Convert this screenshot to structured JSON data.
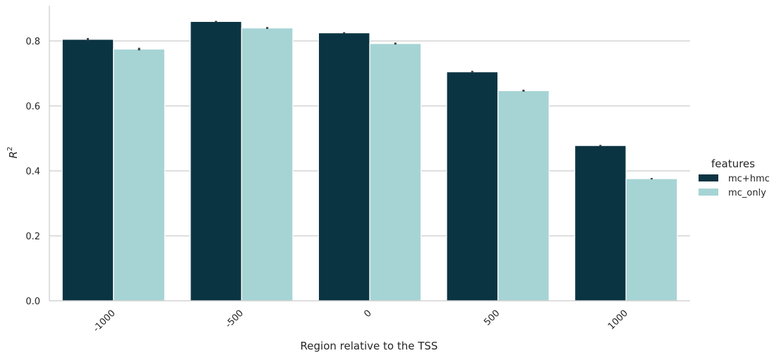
{
  "chart_data": {
    "type": "bar",
    "categories": [
      "-1000",
      "-500",
      "0",
      "500",
      "1000"
    ],
    "series": [
      {
        "name": "mc+hmc",
        "values": [
          0.805,
          0.86,
          0.825,
          0.705,
          0.478
        ],
        "errors": [
          0.004,
          0.002,
          0.002,
          0.003,
          0.002
        ],
        "color": "#0b3442"
      },
      {
        "name": "mc_only",
        "values": [
          0.775,
          0.84,
          0.792,
          0.647,
          0.376
        ],
        "errors": [
          0.004,
          0.003,
          0.003,
          0.003,
          0.002
        ],
        "color": "#a6d4d4"
      }
    ],
    "xlabel": "Region relative to the TSS",
    "ylabel_base": "R",
    "ylabel_sup": "2",
    "ylim": [
      0,
      0.9
    ],
    "yticks": [
      "0.0",
      "0.2",
      "0.4",
      "0.6",
      "0.8"
    ],
    "grid": "horizontal",
    "legend": {
      "title": "features",
      "placement": "right"
    }
  }
}
